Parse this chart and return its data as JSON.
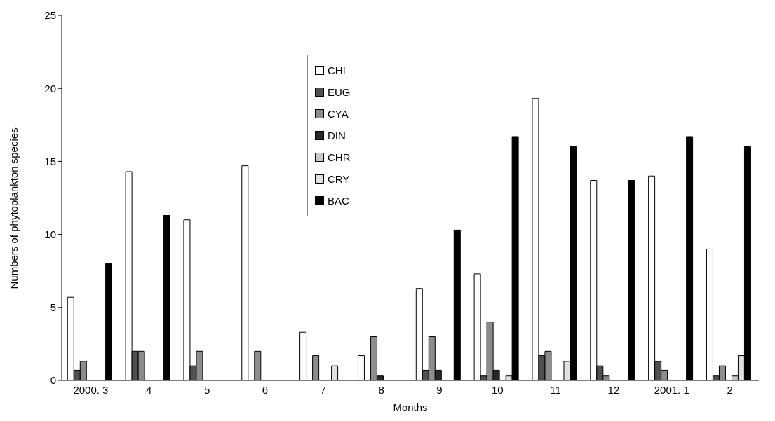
{
  "chart_data": {
    "type": "bar",
    "xlabel": "Months",
    "ylabel": "Numbers of phytoplankton species",
    "categories": [
      "2000. 3",
      "4",
      "5",
      "6",
      "7",
      "8",
      "9",
      "10",
      "11",
      "12",
      "2001. 1",
      "2"
    ],
    "series": [
      {
        "name": "CHL",
        "color": "#ffffff",
        "values": [
          5.7,
          14.3,
          11,
          14.7,
          3.3,
          1.7,
          6.3,
          7.3,
          19.3,
          13.7,
          14,
          9
        ]
      },
      {
        "name": "EUG",
        "color": "#505050",
        "values": [
          0.7,
          2,
          1,
          0,
          0,
          0,
          0.7,
          0.3,
          1.7,
          1,
          1.3,
          0.3
        ]
      },
      {
        "name": "CYA",
        "color": "#8c8c8c",
        "values": [
          1.3,
          2,
          2,
          2,
          1.7,
          3,
          3,
          4,
          2,
          0.3,
          0.7,
          1
        ]
      },
      {
        "name": "DIN",
        "color": "#282828",
        "values": [
          0,
          0,
          0,
          0,
          0,
          0.3,
          0.7,
          0.7,
          0,
          0,
          0,
          0
        ]
      },
      {
        "name": "CHR",
        "color": "#c8c8c8",
        "values": [
          0,
          0,
          0,
          0,
          0,
          0,
          0,
          0,
          0,
          0,
          0,
          0.3
        ]
      },
      {
        "name": "CRY",
        "color": "#e0e0e0",
        "values": [
          0,
          0,
          0,
          0,
          1,
          0,
          0,
          0.3,
          1.3,
          0,
          0,
          1.7
        ]
      },
      {
        "name": "BAC",
        "color": "#000000",
        "values": [
          8,
          11.3,
          0,
          0,
          0,
          0,
          10.3,
          16.7,
          16,
          13.7,
          16.7,
          16
        ]
      }
    ],
    "ylim": [
      0,
      25
    ],
    "yticks": [
      0,
      5,
      10,
      15,
      20,
      25
    ],
    "legend": "top"
  }
}
